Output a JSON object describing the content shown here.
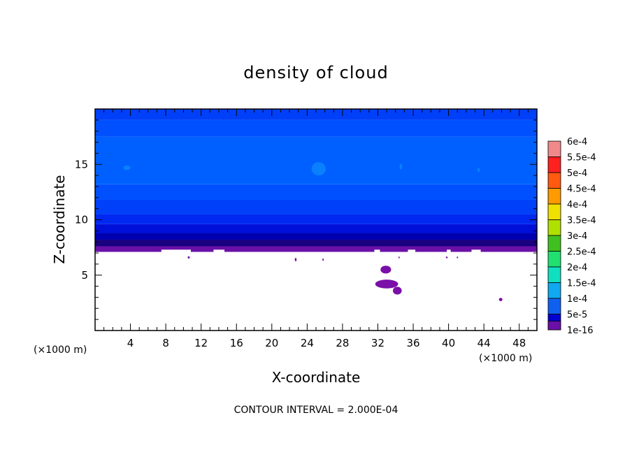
{
  "chart_data": {
    "type": "contour",
    "title": "density of cloud",
    "xlabel": "X-coordinate",
    "ylabel": "Z-coordinate",
    "x_unit": "(×1000 m)",
    "y_unit": "(×1000 m)",
    "xlim": [
      0,
      50
    ],
    "ylim": [
      0,
      20
    ],
    "x_ticks": [
      4,
      8,
      12,
      16,
      20,
      24,
      28,
      32,
      36,
      40,
      44,
      48
    ],
    "y_ticks": [
      5,
      10,
      15
    ],
    "x_minor_step": 1,
    "y_minor_step": 1,
    "contour_interval_note": "CONTOUR INTERVAL = 2.000E-04",
    "colorbar": {
      "labels": [
        "6e-4",
        "5.5e-4",
        "5e-4",
        "4.5e-4",
        "4e-4",
        "3.5e-4",
        "3e-4",
        "2.5e-4",
        "2e-4",
        "1.5e-4",
        "1e-4",
        "5e-5",
        "1e-16"
      ],
      "colors": [
        "#f08a8a",
        "#ff2020",
        "#ff5a10",
        "#ff9a00",
        "#f0e000",
        "#b0e000",
        "#40c020",
        "#20e070",
        "#10e0c0",
        "#10a8f0",
        "#1060f0",
        "#0000d0",
        "#6a10a8"
      ]
    },
    "field": {
      "cloud_base_km": 7.1,
      "cloud_top_km": 20,
      "z_bands": [
        {
          "z0": 7.1,
          "z1": 7.6,
          "value": "1e-16",
          "color": "#6a10a8"
        },
        {
          "z0": 7.6,
          "z1": 8.2,
          "value": "5e-5",
          "color": "#1a0080"
        },
        {
          "z0": 8.2,
          "z1": 8.8,
          "value": "5e-5",
          "color": "#0000b0"
        },
        {
          "z0": 8.8,
          "z1": 9.6,
          "value": "5e-5",
          "color": "#0010d8"
        },
        {
          "z0": 9.6,
          "z1": 10.5,
          "value": "1e-4",
          "color": "#0028f0"
        },
        {
          "z0": 10.5,
          "z1": 11.8,
          "value": "1e-4",
          "color": "#0040f8"
        },
        {
          "z0": 11.8,
          "z1": 13.2,
          "value": "1e-4",
          "color": "#0050ff"
        },
        {
          "z0": 13.2,
          "z1": 17.5,
          "value": "1e-4",
          "color": "#0060ff"
        },
        {
          "z0": 17.5,
          "z1": 19.0,
          "value": "1e-4",
          "color": "#0050ff"
        },
        {
          "z0": 19.0,
          "z1": 20.0,
          "value": "1e-4",
          "color": "#0040f8"
        }
      ],
      "cloud_base_notches": [
        {
          "x0": 0,
          "x1": 7.5,
          "z": 7.0
        },
        {
          "x0": 7.5,
          "x1": 10.8,
          "z": 7.3
        },
        {
          "x0": 10.8,
          "x1": 13.4,
          "z": 7.05
        },
        {
          "x0": 13.4,
          "x1": 14.6,
          "z": 7.3
        },
        {
          "x0": 14.6,
          "x1": 25.0,
          "z": 7.05
        },
        {
          "x0": 25.0,
          "x1": 25.6,
          "z": 6.8
        },
        {
          "x0": 25.6,
          "x1": 31.6,
          "z": 7.05
        },
        {
          "x0": 31.6,
          "x1": 32.2,
          "z": 7.3
        },
        {
          "x0": 32.2,
          "x1": 35.4,
          "z": 7.05
        },
        {
          "x0": 35.4,
          "x1": 36.2,
          "z": 7.3
        },
        {
          "x0": 36.2,
          "x1": 39.8,
          "z": 7.05
        },
        {
          "x0": 39.8,
          "x1": 40.2,
          "z": 7.3
        },
        {
          "x0": 40.2,
          "x1": 42.6,
          "z": 7.05
        },
        {
          "x0": 42.6,
          "x1": 43.6,
          "z": 7.3
        },
        {
          "x0": 43.6,
          "x1": 50,
          "z": 7.05
        }
      ],
      "patches": [
        {
          "x": 25.3,
          "z": 14.6,
          "rx": 0.8,
          "rz": 0.6,
          "color": "#0a80ff"
        },
        {
          "x": 3.6,
          "z": 14.7,
          "rx": 0.4,
          "rz": 0.2,
          "color": "#0a80ff"
        },
        {
          "x": 34.6,
          "z": 14.8,
          "rx": 0.15,
          "rz": 0.25,
          "color": "#0a80ff"
        },
        {
          "x": 43.4,
          "z": 14.5,
          "rx": 0.12,
          "rz": 0.2,
          "color": "#0a80ff"
        },
        {
          "x": 32.9,
          "z": 5.5,
          "rx": 0.6,
          "rz": 0.35,
          "color": "#7a10a8"
        },
        {
          "x": 33.0,
          "z": 4.2,
          "rx": 1.3,
          "rz": 0.4,
          "color": "#7a10a8"
        },
        {
          "x": 34.2,
          "z": 3.6,
          "rx": 0.5,
          "rz": 0.35,
          "color": "#7a10a8"
        },
        {
          "x": 45.9,
          "z": 2.8,
          "rx": 0.2,
          "rz": 0.15,
          "color": "#7a10a8"
        },
        {
          "x": 10.6,
          "z": 6.6,
          "rx": 0.12,
          "rz": 0.1,
          "color": "#7a10a8"
        },
        {
          "x": 22.7,
          "z": 6.4,
          "rx": 0.1,
          "rz": 0.15,
          "color": "#7a10a8"
        },
        {
          "x": 25.8,
          "z": 6.4,
          "rx": 0.08,
          "rz": 0.1,
          "color": "#7a10a8"
        },
        {
          "x": 34.4,
          "z": 6.6,
          "rx": 0.08,
          "rz": 0.08,
          "color": "#7a10a8"
        },
        {
          "x": 39.8,
          "z": 6.6,
          "rx": 0.1,
          "rz": 0.08,
          "color": "#7a10a8"
        },
        {
          "x": 41.0,
          "z": 6.6,
          "rx": 0.08,
          "rz": 0.08,
          "color": "#7a10a8"
        }
      ]
    }
  }
}
